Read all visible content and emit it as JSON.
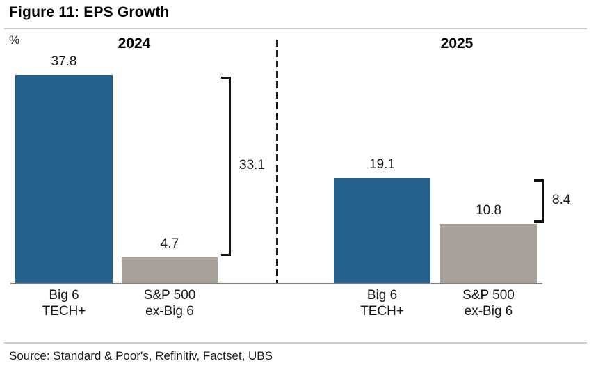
{
  "figure": {
    "title": "Figure 11: EPS Growth",
    "unit_label": "%",
    "source": "Source: Standard & Poor's, Refinitiv, Factset, UBS"
  },
  "colors": {
    "big6_tech_bar": "#26608C",
    "sp500_ex_big6_bar": "#A8A19A",
    "axis_line": "#7F7F7F",
    "rule_line": "#CCCCCC",
    "bracket": "#111111",
    "text": "#000000"
  },
  "chart_data": {
    "type": "bar",
    "title": "Figure 11: EPS Growth",
    "ylabel": "%",
    "ylim": [
      0,
      40
    ],
    "grid": false,
    "legend": "none",
    "x_groups": [
      "2024",
      "2025"
    ],
    "series": [
      {
        "name": "Big 6 TECH+",
        "values": [
          37.8,
          19.1
        ]
      },
      {
        "name": "S&P 500 ex-Big 6",
        "values": [
          4.7,
          10.8
        ]
      }
    ],
    "panels": [
      {
        "year": "2024",
        "categories": [
          "Big 6 TECH+",
          "S&P 500 ex-Big 6"
        ],
        "category_lines": [
          [
            "Big 6",
            "TECH+"
          ],
          [
            "S&P 500",
            "ex-Big 6"
          ]
        ],
        "values": [
          37.8,
          4.7
        ],
        "value_labels": [
          "37.8",
          "4.7"
        ],
        "difference": 33.1,
        "difference_label": "33.1"
      },
      {
        "year": "2025",
        "categories": [
          "Big 6 TECH+",
          "S&P 500 ex-Big 6"
        ],
        "category_lines": [
          [
            "Big 6",
            "TECH+"
          ],
          [
            "S&P 500",
            "ex-Big 6"
          ]
        ],
        "values": [
          19.1,
          10.8
        ],
        "value_labels": [
          "19.1",
          "10.8"
        ],
        "difference": 8.4,
        "difference_label": "8.4"
      }
    ]
  }
}
